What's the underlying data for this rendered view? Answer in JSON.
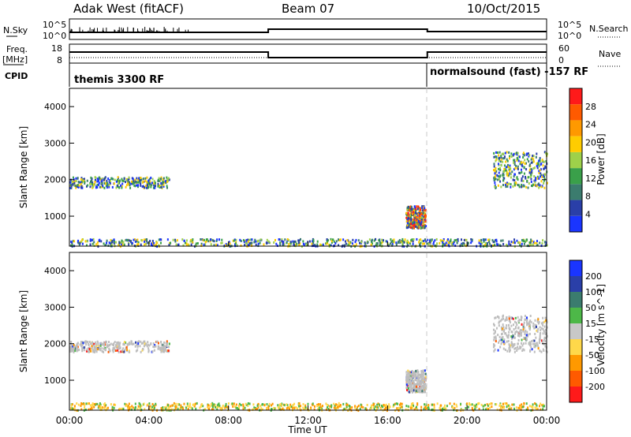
{
  "header": {
    "radar": "Adak West (fitACF)",
    "beam": "Beam 07",
    "date": "10/Oct/2015"
  },
  "colors": {
    "power_scale": [
      "#1a35ff",
      "#2a3fa8",
      "#3b7c6e",
      "#3aa04a",
      "#9ed14a",
      "#ffcc00",
      "#ff9900",
      "#ff5a00",
      "#ff1a1a"
    ],
    "velocity_scale": [
      "#1a35ff",
      "#2a3fa8",
      "#3b7c6e",
      "#4db848",
      "#c8c8c8",
      "#ffd84a",
      "#ff9900",
      "#ff5a00",
      "#ff1a1a"
    ],
    "ground_scatter": "#bdbdbd",
    "marker_line": "#cccccc"
  },
  "status_panel": {
    "nsky_label": "N.Sky",
    "nsearch_label": "N.Search",
    "freq_label_1": "Freq.",
    "freq_label_2": "[MHz]",
    "nave_label": "Nave",
    "cpid_label": "CPID",
    "nsky_tick_top": "10^5",
    "nsky_tick_bottom": "10^0",
    "nsearch_tick_top": "10^5",
    "nsearch_tick_bottom": "10^0",
    "freq_tick_top": "18",
    "freq_tick_bottom": "8",
    "nave_tick_top": "60",
    "nave_tick_bottom": "0",
    "cpid_1": "themis 3300 RF",
    "cpid_2": "normalsound (fast) -157 RF"
  },
  "chart_data": [
    {
      "type": "heatmap",
      "title": "",
      "ylabel": "Slant Range [km]",
      "xlabel": "Time UT",
      "ylim": [
        180,
        4500
      ],
      "y_ticks": [
        "1000",
        "2000",
        "3000",
        "4000"
      ],
      "colorbar_label": "Power [dB]",
      "colorbar_ticks": [
        "4",
        "8",
        "12",
        "16",
        "20",
        "24",
        "28"
      ],
      "colorbar_range": [
        0,
        32
      ],
      "scatter_regions": [
        {
          "desc": "band near 2000 km",
          "t_start": 0.0,
          "t_end": 5.0,
          "r_center": 1950,
          "r_spread": 150
        },
        {
          "desc": "near-range clutter",
          "t_start": 0.0,
          "t_end": 24.0,
          "r_center": 300,
          "r_spread": 100
        },
        {
          "desc": "plume near 1000 km",
          "t_start": 16.9,
          "t_end": 17.9,
          "r_center": 1000,
          "r_spread": 300
        },
        {
          "desc": "late band",
          "t_start": 21.3,
          "t_end": 24.0,
          "r_center": 2300,
          "r_spread": 500
        }
      ]
    },
    {
      "type": "heatmap",
      "title": "",
      "ylabel": "Slant Range [km]",
      "xlabel": "Time UT",
      "ylim": [
        180,
        4500
      ],
      "y_ticks": [
        "1000",
        "2000",
        "3000",
        "4000"
      ],
      "colorbar_label": "Velocity [m s^-1]",
      "colorbar_ticks": [
        "200",
        "100",
        "50",
        "15",
        "-15",
        "-50",
        "-100",
        "-200"
      ],
      "x_ticks": [
        "00:00",
        "04:00",
        "08:00",
        "12:00",
        "16:00",
        "20:00",
        "00:00"
      ],
      "xlim_hours": [
        0,
        24
      ],
      "cpid_change_hour": 18.0
    }
  ]
}
